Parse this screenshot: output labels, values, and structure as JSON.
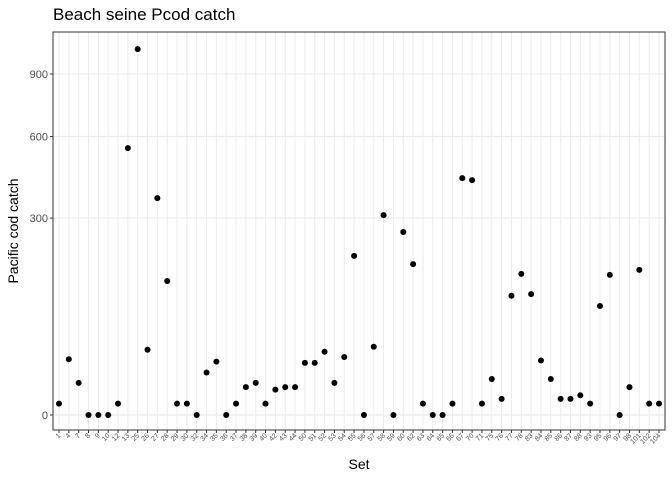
{
  "chart_data": {
    "type": "scatter",
    "title": "Beach seine Pcod catch",
    "x_label": "Set",
    "y_label": "Pacific cod catch",
    "categories": [
      "1",
      "4",
      "7",
      "8",
      "9",
      "10",
      "12",
      "13",
      "25",
      "26",
      "27",
      "28",
      "29",
      "30",
      "32",
      "34",
      "35",
      "36",
      "37",
      "38",
      "39",
      "40",
      "42",
      "43",
      "44",
      "50",
      "51",
      "52",
      "53",
      "54",
      "55",
      "56",
      "57",
      "58",
      "59",
      "60",
      "62",
      "63",
      "64",
      "65",
      "66",
      "67",
      "70",
      "71",
      "75",
      "76",
      "77",
      "78",
      "83",
      "84",
      "85",
      "86",
      "87",
      "88",
      "93",
      "95",
      "96",
      "97",
      "98",
      "101",
      "102",
      "104"
    ],
    "values": [
      1,
      24,
      8,
      0,
      0,
      0,
      1,
      551,
      1036,
      33,
      364,
      139,
      1,
      1,
      0,
      14,
      22,
      0,
      1,
      6,
      8,
      1,
      5,
      6,
      6,
      21,
      21,
      31,
      8,
      26,
      196,
      0,
      36,
      309,
      0,
      259,
      176,
      1,
      0,
      0,
      1,
      434,
      427,
      1,
      10,
      2,
      110,
      154,
      113,
      23,
      10,
      2,
      2,
      3,
      1,
      92,
      152,
      0,
      6,
      163,
      1,
      1
    ],
    "color": "#000000",
    "y_scale": "sqrt",
    "ylim": [
      0,
      1135
    ],
    "yticks": [
      0,
      300,
      600,
      900
    ],
    "grid": true
  }
}
